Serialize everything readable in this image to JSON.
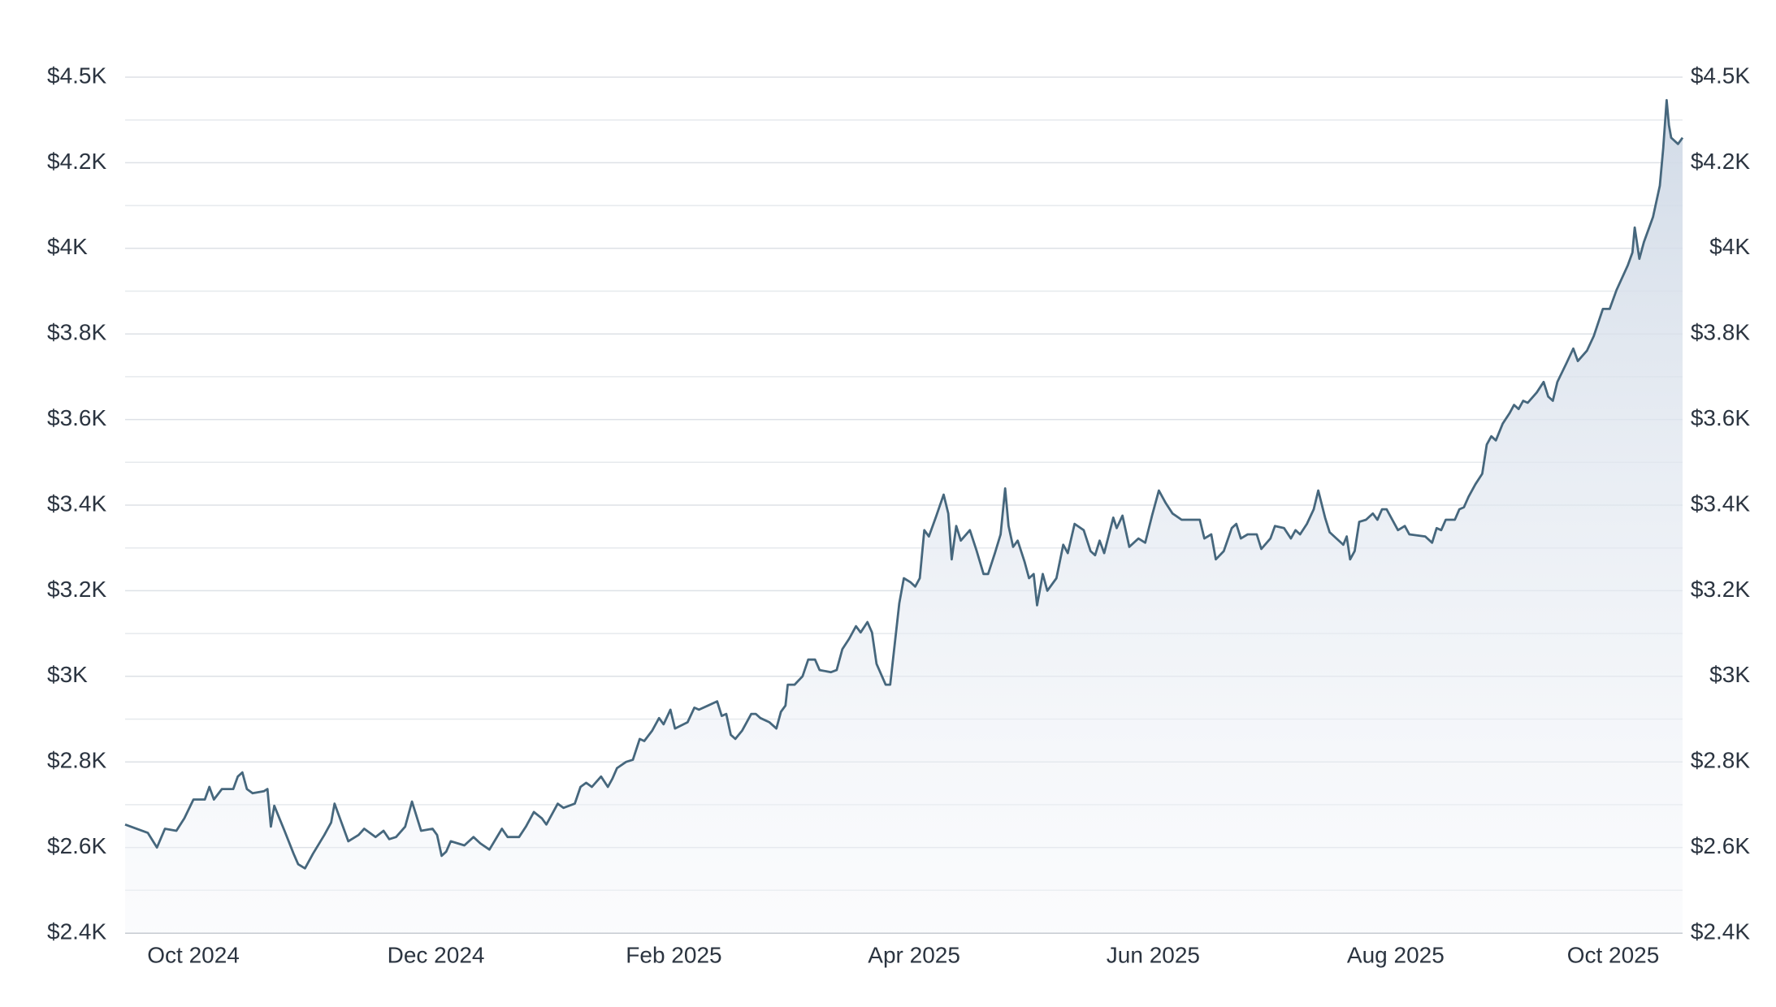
{
  "chart_data": {
    "type": "area",
    "color": "#46677d",
    "grid": true,
    "xlim": [
      0,
      1368
    ],
    "xticks": [
      {
        "value": 60,
        "label": "Oct 2024"
      },
      {
        "value": 273,
        "label": "Dec 2024"
      },
      {
        "value": 482,
        "label": "Feb 2025"
      },
      {
        "value": 693,
        "label": "Apr 2025"
      },
      {
        "value": 903,
        "label": "Jun 2025"
      },
      {
        "value": 1116,
        "label": "Aug 2025"
      },
      {
        "value": 1307,
        "label": "Oct 2025"
      }
    ],
    "ylim": [
      2400,
      4450
    ],
    "yticks": [
      {
        "value": 2400,
        "label": "$2.4K"
      },
      {
        "value": 2605,
        "label": "$2.6K"
      },
      {
        "value": 2810,
        "label": "$2.8K"
      },
      {
        "value": 3015,
        "label": "$3K"
      },
      {
        "value": 3220,
        "label": "$3.2K"
      },
      {
        "value": 3425,
        "label": "$3.4K"
      },
      {
        "value": 3630,
        "label": "$3.6K"
      },
      {
        "value": 3835,
        "label": "$3.8K"
      },
      {
        "value": 4040,
        "label": "$4K"
      },
      {
        "value": 4245,
        "label": "$4.2K"
      },
      {
        "value": 4450,
        "label": "$4.5K"
      }
    ],
    "x": [
      0,
      20,
      28,
      35,
      45,
      52,
      60,
      70,
      74,
      78,
      85,
      95,
      99,
      103,
      107,
      112,
      122,
      125,
      128,
      131,
      140,
      148,
      152,
      158,
      165,
      175,
      181,
      184,
      190,
      196,
      205,
      210,
      220,
      227,
      232,
      238,
      246,
      252,
      260,
      270,
      274,
      278,
      282,
      286,
      298,
      306,
      312,
      320,
      331,
      336,
      346,
      352,
      359,
      366,
      370,
      380,
      385,
      395,
      400,
      405,
      410,
      418,
      424,
      428,
      432,
      440,
      446,
      452,
      456,
      463,
      469,
      473,
      479,
      483,
      494,
      500,
      504,
      512,
      520,
      524,
      528,
      532,
      536,
      542,
      550,
      554,
      558,
      566,
      572,
      576,
      580,
      582,
      588,
      595,
      600,
      606,
      610,
      620,
      625,
      630,
      636,
      642,
      646,
      652,
      656,
      660,
      668,
      672,
      680,
      684,
      690,
      694,
      698,
      702,
      706,
      712,
      719,
      723,
      726,
      730,
      734,
      742,
      748,
      754,
      758,
      764,
      769,
      773,
      776,
      780,
      784,
      790,
      794,
      798,
      801,
      806,
      810,
      818,
      824,
      828,
      834,
      842,
      848,
      852,
      856,
      860,
      868,
      871,
      876,
      882,
      890,
      896,
      902,
      908,
      914,
      920,
      928,
      936,
      944,
      948,
      954,
      958,
      965,
      972,
      976,
      980,
      986,
      994,
      998,
      1006,
      1010,
      1018,
      1024,
      1028,
      1032,
      1038,
      1044,
      1048,
      1054,
      1058,
      1064,
      1070,
      1073,
      1076,
      1080,
      1084,
      1090,
      1096,
      1100,
      1104,
      1108,
      1118,
      1124,
      1128,
      1142,
      1148,
      1152,
      1156,
      1160,
      1168,
      1172,
      1176,
      1180,
      1186,
      1192,
      1196,
      1200,
      1204,
      1210,
      1216,
      1220,
      1224,
      1228,
      1232,
      1240,
      1246,
      1250,
      1254,
      1258,
      1266,
      1272,
      1276,
      1284,
      1290,
      1298,
      1304,
      1310,
      1320,
      1324,
      1326,
      1330,
      1334,
      1342,
      1348,
      1351,
      1354,
      1356,
      1358,
      1364,
      1368
    ],
    "values": [
      2660,
      2640,
      2605,
      2650,
      2645,
      2675,
      2720,
      2720,
      2750,
      2720,
      2745,
      2745,
      2775,
      2785,
      2745,
      2735,
      2740,
      2745,
      2655,
      2705,
      2645,
      2590,
      2565,
      2555,
      2590,
      2635,
      2665,
      2710,
      2665,
      2620,
      2635,
      2650,
      2630,
      2645,
      2625,
      2630,
      2655,
      2715,
      2645,
      2650,
      2635,
      2585,
      2595,
      2620,
      2610,
      2630,
      2615,
      2600,
      2650,
      2630,
      2630,
      2655,
      2690,
      2675,
      2660,
      2710,
      2700,
      2710,
      2750,
      2760,
      2750,
      2775,
      2750,
      2770,
      2795,
      2810,
      2815,
      2865,
      2860,
      2885,
      2915,
      2900,
      2935,
      2890,
      2905,
      2940,
      2935,
      2945,
      2955,
      2920,
      2925,
      2875,
      2865,
      2885,
      2925,
      2925,
      2915,
      2905,
      2890,
      2930,
      2945,
      2995,
      2995,
      3015,
      3055,
      3055,
      3030,
      3025,
      3030,
      3080,
      3105,
      3135,
      3120,
      3145,
      3120,
      3045,
      2995,
      2995,
      3190,
      3250,
      3240,
      3230,
      3250,
      3365,
      3350,
      3395,
      3450,
      3405,
      3295,
      3375,
      3340,
      3365,
      3315,
      3260,
      3260,
      3310,
      3355,
      3465,
      3375,
      3325,
      3340,
      3290,
      3250,
      3260,
      3185,
      3260,
      3220,
      3250,
      3330,
      3310,
      3380,
      3365,
      3315,
      3305,
      3340,
      3310,
      3395,
      3370,
      3400,
      3325,
      3345,
      3335,
      3400,
      3460,
      3430,
      3405,
      3390,
      3390,
      3390,
      3345,
      3355,
      3295,
      3315,
      3370,
      3380,
      3345,
      3355,
      3355,
      3320,
      3345,
      3375,
      3370,
      3345,
      3365,
      3355,
      3380,
      3415,
      3460,
      3395,
      3360,
      3345,
      3330,
      3350,
      3295,
      3315,
      3385,
      3390,
      3405,
      3390,
      3415,
      3415,
      3365,
      3375,
      3355,
      3350,
      3335,
      3370,
      3365,
      3390,
      3390,
      3415,
      3420,
      3445,
      3475,
      3500,
      3570,
      3590,
      3580,
      3620,
      3645,
      3665,
      3655,
      3675,
      3670,
      3695,
      3720,
      3685,
      3675,
      3720,
      3765,
      3800,
      3770,
      3795,
      3830,
      3895,
      3895,
      3940,
      4000,
      4030,
      4090,
      4015,
      4055,
      4115,
      4190,
      4280,
      4395,
      4335,
      4305,
      4290,
      4305
    ]
  }
}
